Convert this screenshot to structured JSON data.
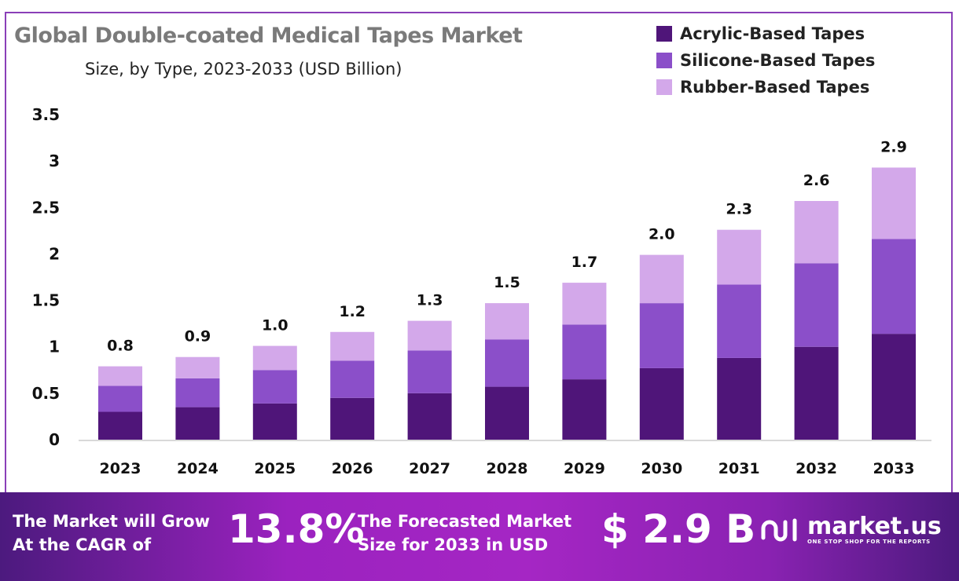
{
  "colors": {
    "acrylic": "#4f1579",
    "silicone": "#8b4fc9",
    "rubber": "#d3a8ea",
    "frame": "#8a3fb8"
  },
  "chart_data": {
    "type": "stacked-bar",
    "title": "Global Double-coated Medical Tapes Market",
    "subtitle": "Size, by Type, 2023-2033 (USD Billion)",
    "categories": [
      "2023",
      "2024",
      "2025",
      "2026",
      "2027",
      "2028",
      "2029",
      "2030",
      "2031",
      "2032",
      "2033"
    ],
    "series": [
      {
        "name": "Acrylic-Based Tapes",
        "values": [
          0.3,
          0.35,
          0.39,
          0.45,
          0.5,
          0.57,
          0.65,
          0.77,
          0.88,
          1.0,
          1.14
        ]
      },
      {
        "name": "Silicone-Based Tapes",
        "values": [
          0.28,
          0.31,
          0.36,
          0.4,
          0.46,
          0.51,
          0.59,
          0.7,
          0.79,
          0.9,
          1.02
        ]
      },
      {
        "name": "Rubber-Based Tapes",
        "values": [
          0.21,
          0.23,
          0.26,
          0.31,
          0.32,
          0.39,
          0.45,
          0.52,
          0.59,
          0.67,
          0.77
        ]
      }
    ],
    "totals": [
      "0.8",
      "0.9",
      "1.0",
      "1.2",
      "1.3",
      "1.5",
      "1.7",
      "2.0",
      "2.3",
      "2.6",
      "2.9"
    ],
    "yticks": [
      "0",
      "0.5",
      "1",
      "1.5",
      "2",
      "2.5",
      "3",
      "3.5"
    ],
    "ylim": [
      0,
      3.5
    ],
    "grid": false,
    "legend": "top-right"
  },
  "footer": {
    "cagr_text_1": "The Market will Grow",
    "cagr_text_2": "At the CAGR of",
    "cagr_value": "13.8%",
    "forecast_text_1": "The Forecasted Market",
    "forecast_text_2": "Size for 2033 in USD",
    "forecast_value": "$ 2.9 B",
    "logo_name": "market.us",
    "logo_tagline": "ONE STOP SHOP FOR THE REPORTS"
  }
}
